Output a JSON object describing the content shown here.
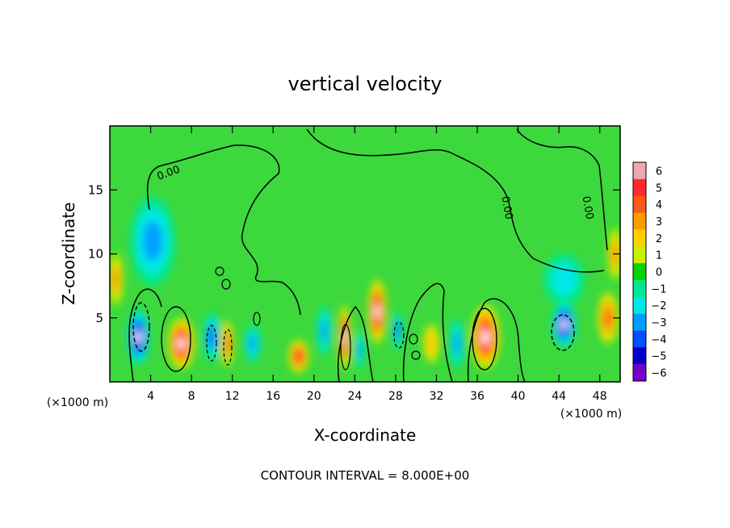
{
  "chart_data": {
    "type": "heatmap",
    "title": "vertical velocity",
    "xlabel": "X-coordinate",
    "ylabel": "Z-coordinate",
    "x_unit_left": "(×1000 m)",
    "x_unit_right": "(×1000 m)",
    "xlim": [
      0,
      50
    ],
    "ylim": [
      0,
      20
    ],
    "x_ticks": [
      "4",
      "8",
      "12",
      "16",
      "20",
      "24",
      "28",
      "32",
      "36",
      "40",
      "44",
      "48"
    ],
    "x_tick_values": [
      4,
      8,
      12,
      16,
      20,
      24,
      28,
      32,
      36,
      40,
      44,
      48
    ],
    "y_ticks": [
      "5",
      "10",
      "15"
    ],
    "y_tick_values": [
      5,
      10,
      15
    ],
    "colorbar": {
      "labels": [
        "6",
        "5",
        "4",
        "3",
        "2",
        "1",
        "0",
        "−1",
        "−2",
        "−3",
        "−4",
        "−5",
        "−6"
      ],
      "colors": [
        "#f0a8a8",
        "#ff2a2a",
        "#ff5a14",
        "#ff9a00",
        "#ffd000",
        "#c8f000",
        "#00d400",
        "#00e890",
        "#00e8e8",
        "#00a0ff",
        "#0050ff",
        "#0000c8",
        "#7800c8"
      ]
    },
    "contour_label": "0.00",
    "contour_interval_text": "CONTOUR INTERVAL = 8.000E+00",
    "features": [
      {
        "x": 2.8,
        "z": 3.5,
        "w": -6,
        "sx": 1.1,
        "sz": 2.2
      },
      {
        "x": 4.2,
        "z": 11,
        "w": -2.5,
        "sx": 2.2,
        "sz": 3.5
      },
      {
        "x": 7.0,
        "z": 3.0,
        "w": 6,
        "sx": 1.3,
        "sz": 2.0
      },
      {
        "x": 10.0,
        "z": 3.5,
        "w": -4,
        "sx": 0.8,
        "sz": 2.0
      },
      {
        "x": 11.5,
        "z": 3.0,
        "w": 4,
        "sx": 0.6,
        "sz": 1.8
      },
      {
        "x": 14.0,
        "z": 3.0,
        "w": -2.5,
        "sx": 0.8,
        "sz": 1.5
      },
      {
        "x": 18.5,
        "z": 2.0,
        "w": 5,
        "sx": 1.0,
        "sz": 1.3
      },
      {
        "x": 21.0,
        "z": 4.0,
        "w": -3,
        "sx": 0.7,
        "sz": 2.0
      },
      {
        "x": 23.0,
        "z": 3.5,
        "w": 6,
        "sx": 0.6,
        "sz": 2.5
      },
      {
        "x": 24.5,
        "z": 2.5,
        "w": -3,
        "sx": 0.5,
        "sz": 1.5
      },
      {
        "x": 26.2,
        "z": 5.5,
        "w": 6,
        "sx": 0.9,
        "sz": 2.5
      },
      {
        "x": 28.2,
        "z": 4.0,
        "w": -4,
        "sx": 0.5,
        "sz": 1.5
      },
      {
        "x": 31.5,
        "z": 3.0,
        "w": 2.5,
        "sx": 0.8,
        "sz": 1.5
      },
      {
        "x": 34.0,
        "z": 3.0,
        "w": -3,
        "sx": 0.7,
        "sz": 2.0
      },
      {
        "x": 36.8,
        "z": 3.5,
        "w": 6,
        "sx": 1.4,
        "sz": 2.5
      },
      {
        "x": 44.5,
        "z": 4.5,
        "w": -6,
        "sx": 1.2,
        "sz": 1.8
      },
      {
        "x": 44.5,
        "z": 8.0,
        "w": -2,
        "sx": 2.0,
        "sz": 2.0
      },
      {
        "x": 48.8,
        "z": 5.0,
        "w": 4,
        "sx": 1.0,
        "sz": 2.0
      },
      {
        "x": 49.5,
        "z": 10.0,
        "w": 3,
        "sx": 0.7,
        "sz": 2.0
      },
      {
        "x": 0.6,
        "z": 8.0,
        "w": 3,
        "sx": 0.7,
        "sz": 2.0
      }
    ]
  }
}
